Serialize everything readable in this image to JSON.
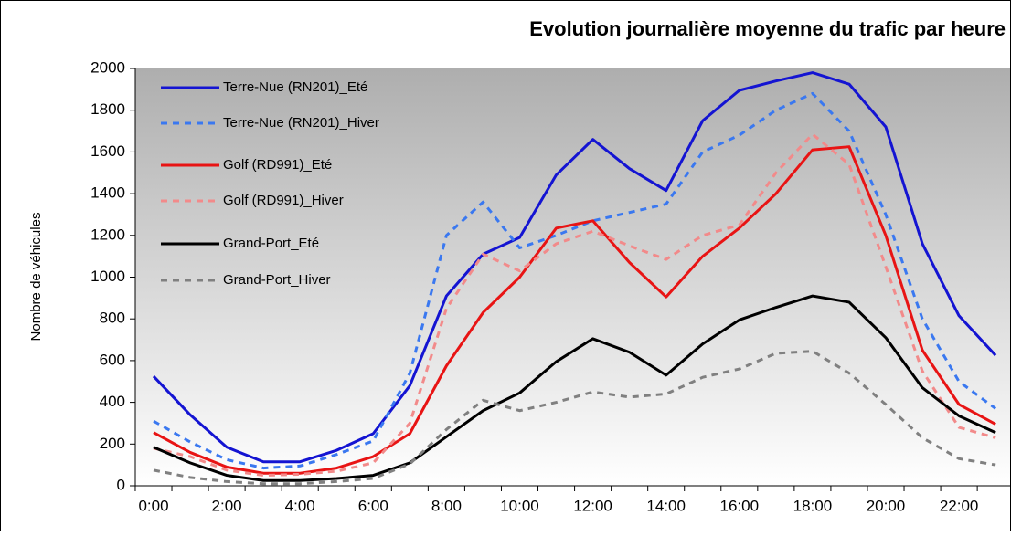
{
  "chart_data": {
    "type": "line",
    "title": "Evolution  journalière moyenne du trafic par heure",
    "y_label": "Nombre de véhicules",
    "categories": [
      "0:00",
      null,
      "2:00",
      null,
      "4:00",
      null,
      "6:00",
      null,
      "8:00",
      null,
      "10:00",
      null,
      "12:00",
      null,
      "14:00",
      null,
      "16:00",
      null,
      "18:00",
      null,
      "20:00",
      null,
      "22:00",
      null
    ],
    "series": [
      {
        "name": "Terre-Nue (RN201)_Eté",
        "color": "#1414d2",
        "line_style": "solid",
        "values": [
          525,
          340,
          185,
          115,
          115,
          170,
          250,
          480,
          910,
          1110,
          1190,
          1490,
          1660,
          1520,
          1415,
          1750,
          1895,
          1940,
          1980,
          1925,
          1720,
          1160,
          815,
          625
        ]
      },
      {
        "name": "Terre-Nue (RN201)_Hiver",
        "color": "#3a78f0",
        "line_style": "dashed",
        "values": [
          310,
          210,
          125,
          85,
          95,
          150,
          215,
          540,
          1200,
          1360,
          1140,
          1200,
          1270,
          1310,
          1350,
          1600,
          1680,
          1800,
          1880,
          1700,
          1300,
          800,
          500,
          370
        ]
      },
      {
        "name": "Golf (RD991)_Eté",
        "color": "#e81414",
        "line_style": "solid",
        "values": [
          255,
          160,
          90,
          60,
          60,
          85,
          140,
          250,
          575,
          830,
          1000,
          1235,
          1270,
          1070,
          905,
          1100,
          1235,
          1400,
          1610,
          1625,
          1200,
          650,
          390,
          295
        ]
      },
      {
        "name": "Golf (RD991)_Hiver",
        "color": "#f28a8a",
        "line_style": "dashed",
        "values": [
          180,
          140,
          75,
          50,
          55,
          70,
          110,
          300,
          850,
          1110,
          1030,
          1160,
          1220,
          1150,
          1085,
          1200,
          1250,
          1500,
          1685,
          1540,
          1050,
          550,
          280,
          230
        ]
      },
      {
        "name": "Grand-Port_Eté",
        "color": "#000000",
        "line_style": "solid",
        "values": [
          185,
          110,
          50,
          25,
          25,
          35,
          50,
          110,
          235,
          360,
          445,
          595,
          705,
          640,
          530,
          680,
          795,
          855,
          910,
          880,
          710,
          470,
          335,
          255
        ]
      },
      {
        "name": "Grand-Port_Hiver",
        "color": "#808080",
        "line_style": "dashed",
        "values": [
          75,
          40,
          20,
          10,
          10,
          20,
          35,
          105,
          270,
          410,
          360,
          400,
          450,
          425,
          440,
          520,
          560,
          635,
          645,
          540,
          390,
          230,
          130,
          100
        ]
      }
    ],
    "ylim": [
      0,
      2000
    ],
    "yticks": [
      0,
      200,
      400,
      600,
      800,
      1000,
      1200,
      1400,
      1600,
      1800,
      2000
    ],
    "legend": "top-left",
    "grid": false
  }
}
